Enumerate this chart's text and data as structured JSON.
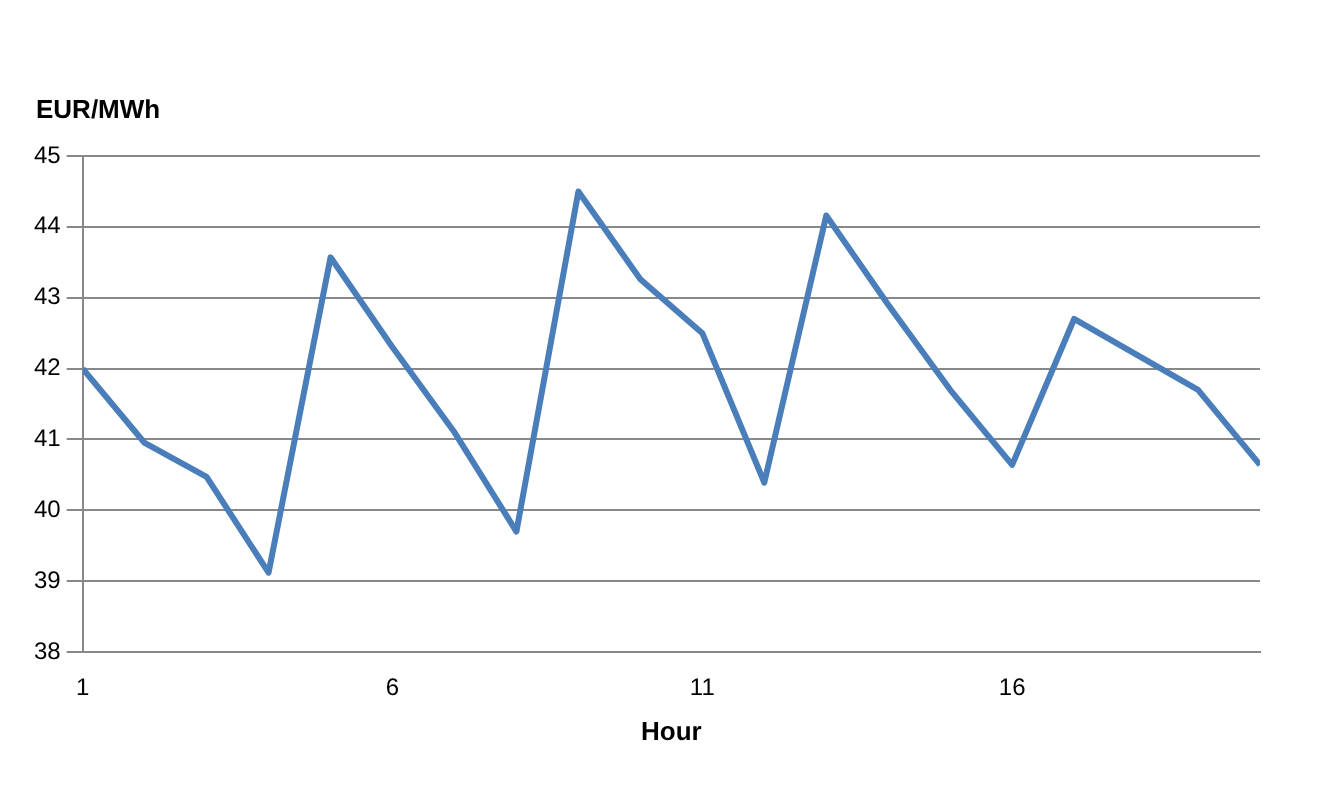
{
  "chart_data": {
    "type": "line",
    "ylabel": "EUR/MWh",
    "xlabel": "Hour",
    "x": [
      1,
      2,
      3,
      4,
      5,
      6,
      7,
      8,
      9,
      10,
      11,
      12,
      13,
      14,
      15,
      16,
      17,
      18,
      19,
      20
    ],
    "series": [
      {
        "color": "#4a7ebb",
        "values": [
          42.0,
          40.95,
          40.47,
          39.12,
          43.57,
          42.3,
          41.1,
          39.7,
          44.5,
          43.26,
          42.5,
          40.39,
          44.16,
          42.9,
          41.7,
          40.64,
          42.7,
          42.2,
          41.7,
          40.64
        ]
      }
    ],
    "xlim": [
      1,
      20
    ],
    "xticks": [
      1,
      6,
      11,
      16
    ],
    "ylim": [
      38,
      45
    ],
    "yticks": [
      38,
      39,
      40,
      41,
      42,
      43,
      44,
      45
    ],
    "grid": "y",
    "legend": false,
    "marker": "none",
    "line_style": "solid"
  }
}
